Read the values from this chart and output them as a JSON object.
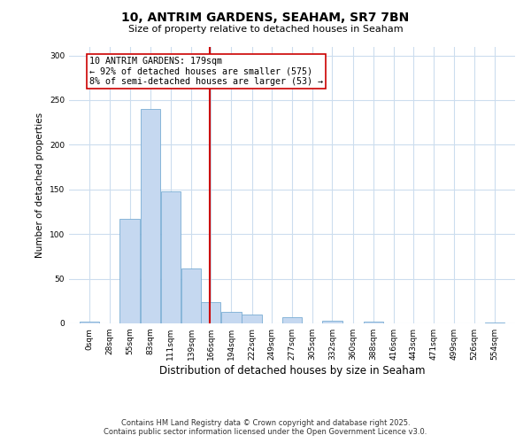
{
  "title": "10, ANTRIM GARDENS, SEAHAM, SR7 7BN",
  "subtitle": "Size of property relative to detached houses in Seaham",
  "xlabel": "Distribution of detached houses by size in Seaham",
  "ylabel": "Number of detached properties",
  "bin_labels": [
    "0sqm",
    "28sqm",
    "55sqm",
    "83sqm",
    "111sqm",
    "139sqm",
    "166sqm",
    "194sqm",
    "222sqm",
    "249sqm",
    "277sqm",
    "305sqm",
    "332sqm",
    "360sqm",
    "388sqm",
    "416sqm",
    "443sqm",
    "471sqm",
    "499sqm",
    "526sqm",
    "554sqm"
  ],
  "bin_edges": [
    0,
    28,
    55,
    83,
    111,
    139,
    166,
    194,
    222,
    249,
    277,
    305,
    332,
    360,
    388,
    416,
    443,
    471,
    499,
    526,
    554
  ],
  "bar_heights": [
    2,
    0,
    117,
    240,
    148,
    62,
    24,
    13,
    10,
    0,
    7,
    0,
    3,
    0,
    2,
    0,
    0,
    0,
    0,
    0,
    1
  ],
  "bar_color": "#c5d8f0",
  "bar_edgecolor": "#7aadd4",
  "vline_x": 179,
  "vline_color": "#cc0000",
  "annotation_title": "10 ANTRIM GARDENS: 179sqm",
  "annotation_line1": "← 92% of detached houses are smaller (575)",
  "annotation_line2": "8% of semi-detached houses are larger (53) →",
  "annotation_box_edgecolor": "#cc0000",
  "ylim": [
    0,
    310
  ],
  "yticks": [
    0,
    50,
    100,
    150,
    200,
    250,
    300
  ],
  "footnote1": "Contains HM Land Registry data © Crown copyright and database right 2025.",
  "footnote2": "Contains public sector information licensed under the Open Government Licence v3.0.",
  "bg_color": "#ffffff",
  "grid_color": "#ccddee",
  "bin_width": 28,
  "xlim_left": -14,
  "xlim_right": 596
}
